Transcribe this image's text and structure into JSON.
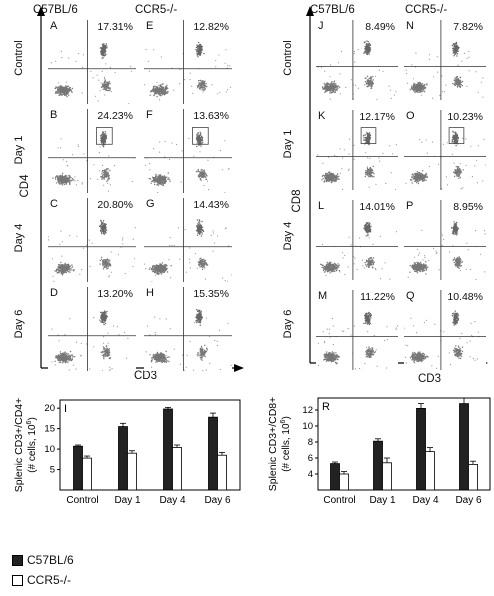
{
  "left_figure": {
    "strains": [
      "C57BL/6",
      "CCR5-/-"
    ],
    "row_labels": [
      "Control",
      "Day 1",
      "Day 4",
      "Day 6"
    ],
    "y_axis": "CD4",
    "x_axis": "CD3",
    "panels": [
      {
        "label": "A",
        "pct": "17.31%"
      },
      {
        "label": "E",
        "pct": "12.82%"
      },
      {
        "label": "B",
        "pct": "24.23%"
      },
      {
        "label": "F",
        "pct": "13.63%"
      },
      {
        "label": "C",
        "pct": "20.80%"
      },
      {
        "label": "G",
        "pct": "14.43%"
      },
      {
        "label": "D",
        "pct": "13.20%"
      },
      {
        "label": "H",
        "pct": "15.35%"
      }
    ]
  },
  "right_figure": {
    "strains": [
      "C57BL/6",
      "CCR5-/-"
    ],
    "row_labels": [
      "Control",
      "Day 1",
      "Day 4",
      "Day 6"
    ],
    "y_axis": "CD8",
    "x_axis": "CD3",
    "panels": [
      {
        "label": "J",
        "pct": "8.49%"
      },
      {
        "label": "N",
        "pct": "7.82%"
      },
      {
        "label": "K",
        "pct": "12.17%"
      },
      {
        "label": "O",
        "pct": "10.23%"
      },
      {
        "label": "L",
        "pct": "14.01%"
      },
      {
        "label": "P",
        "pct": "8.95%"
      },
      {
        "label": "M",
        "pct": "11.22%"
      },
      {
        "label": "Q",
        "pct": "10.48%"
      }
    ]
  },
  "legend": {
    "items": [
      {
        "name": "C57BL/6",
        "color": "#222222"
      },
      {
        "name": "CCR5-/-",
        "color": "#ffffff"
      }
    ]
  },
  "chart_data": [
    {
      "panel_label": "I",
      "type": "bar",
      "ylabel_line1": "Splenic CD3+/CD4+",
      "ylabel_line2": "(# cells, 10",
      "ylabel_sup": "6",
      "ylabel_end": ")",
      "categories": [
        "Control",
        "Day 1",
        "Day 4",
        "Day 6"
      ],
      "ylim": [
        0,
        22
      ],
      "yticks": [
        5,
        10,
        15,
        20
      ],
      "series": [
        {
          "name": "C57BL/6",
          "color": "#222222",
          "values": [
            10.7,
            15.5,
            19.8,
            17.8
          ],
          "errors": [
            0.3,
            0.8,
            0.4,
            1.0
          ]
        },
        {
          "name": "CCR5-/-",
          "color": "#ffffff",
          "values": [
            7.8,
            9.0,
            10.4,
            8.5
          ],
          "errors": [
            0.5,
            0.6,
            0.6,
            0.7
          ]
        }
      ]
    },
    {
      "panel_label": "R",
      "type": "bar",
      "ylabel_line1": "Splenic CD3+/CD8+",
      "ylabel_line2": "(# cells, 10",
      "ylabel_sup": "6",
      "ylabel_end": ")",
      "categories": [
        "Control",
        "Day 1",
        "Day 4",
        "Day 6"
      ],
      "ylim": [
        2,
        13.5
      ],
      "yticks": [
        4,
        6,
        8,
        10,
        12
      ],
      "series": [
        {
          "name": "C57BL/6",
          "color": "#222222",
          "values": [
            5.3,
            8.1,
            12.2,
            12.8
          ],
          "errors": [
            0.2,
            0.3,
            0.6,
            0.7
          ]
        },
        {
          "name": "CCR5-/-",
          "color": "#ffffff",
          "values": [
            4.0,
            5.4,
            6.8,
            5.2
          ],
          "errors": [
            0.3,
            0.6,
            0.5,
            0.4
          ]
        }
      ]
    }
  ]
}
